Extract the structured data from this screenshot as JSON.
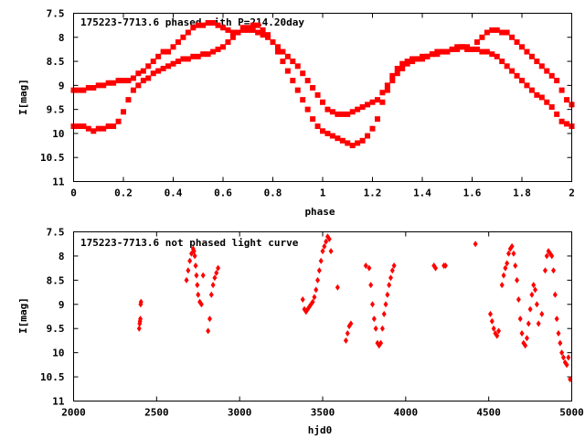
{
  "chart_data": [
    {
      "type": "scatter",
      "title": "175223-7713.6 phased with P=214.20day",
      "xlabel": "phase",
      "ylabel": "I[mag]",
      "xlim": [
        0,
        2
      ],
      "ylim": [
        11,
        7.5
      ],
      "y_inverted": true,
      "x_ticks": [
        "0",
        "0.2",
        "0.4",
        "0.6",
        "0.8",
        "1",
        "1.2",
        "1.4",
        "1.6",
        "1.8",
        "2"
      ],
      "y_ticks": [
        "7.5",
        "8",
        "8.5",
        "9",
        "9.5",
        "10",
        "10.5",
        "11"
      ],
      "grid": false,
      "marker": "square",
      "color": "#ff0000",
      "series": [
        {
          "x": [
            0.0,
            0.02,
            0.04,
            0.06,
            0.08,
            0.1,
            0.12,
            0.14,
            0.16,
            0.18,
            0.2,
            0.22,
            0.24,
            0.26,
            0.28,
            0.3,
            0.32,
            0.34,
            0.36,
            0.38,
            0.4,
            0.42,
            0.44,
            0.46,
            0.48,
            0.5,
            0.52,
            0.54,
            0.56,
            0.58,
            0.6,
            0.62,
            0.64,
            0.66,
            0.68,
            0.7,
            0.72,
            0.74,
            0.76,
            0.78,
            0.8,
            0.82,
            0.84,
            0.86,
            0.88,
            0.9,
            0.92,
            0.94,
            0.96,
            0.98,
            1.0,
            1.02,
            1.04,
            1.06,
            1.08,
            1.1,
            1.12,
            1.14,
            1.16,
            1.18,
            1.2,
            1.22,
            1.24,
            1.26,
            1.28,
            1.3,
            1.32,
            1.34,
            1.36,
            1.38,
            1.4,
            1.42,
            1.44,
            1.46,
            1.48,
            1.5,
            1.52,
            1.54,
            1.56,
            1.58,
            1.6,
            1.62,
            1.64,
            1.66,
            1.68,
            1.7,
            1.72,
            1.74,
            1.76,
            1.78,
            1.8,
            1.82,
            1.84,
            1.86,
            1.88,
            1.9,
            1.92,
            1.94,
            1.96,
            1.98,
            2.0
          ],
          "y": [
            9.1,
            9.1,
            9.1,
            9.05,
            9.05,
            9.0,
            9.0,
            8.95,
            8.95,
            8.9,
            8.9,
            8.9,
            8.85,
            8.75,
            8.7,
            8.6,
            8.5,
            8.4,
            8.3,
            8.3,
            8.2,
            8.1,
            8.0,
            7.9,
            7.8,
            7.75,
            7.75,
            7.7,
            7.7,
            7.75,
            7.8,
            7.85,
            7.9,
            7.9,
            7.85,
            7.85,
            7.85,
            7.9,
            7.95,
            8.0,
            8.1,
            8.2,
            8.3,
            8.4,
            8.5,
            8.6,
            8.75,
            8.9,
            9.05,
            9.2,
            9.35,
            9.5,
            9.55,
            9.6,
            9.6,
            9.6,
            9.55,
            9.5,
            9.45,
            9.4,
            9.35,
            9.3,
            9.15,
            9.0,
            8.8,
            8.65,
            8.55,
            8.5,
            8.45,
            8.45,
            8.4,
            8.4,
            8.35,
            8.35,
            8.3,
            8.3,
            8.25,
            8.25,
            8.2,
            8.25,
            8.25,
            8.1,
            8.0,
            7.9,
            7.85,
            7.85,
            7.9,
            7.9,
            8.0,
            8.1,
            8.2,
            8.3,
            8.4,
            8.5,
            8.6,
            8.7,
            8.8,
            8.9,
            9.1,
            9.3,
            9.4
          ]
        },
        {
          "x": [
            0.0,
            0.02,
            0.04,
            0.06,
            0.08,
            0.1,
            0.12,
            0.14,
            0.16,
            0.18,
            0.2,
            0.22,
            0.24,
            0.26,
            0.28,
            0.3,
            0.32,
            0.34,
            0.36,
            0.38,
            0.4,
            0.42,
            0.44,
            0.46,
            0.48,
            0.5,
            0.52,
            0.54,
            0.56,
            0.58,
            0.6,
            0.62,
            0.64,
            0.66,
            0.68,
            0.7,
            0.72,
            0.74,
            0.76,
            0.78,
            0.8,
            0.82,
            0.84,
            0.86,
            0.88,
            0.9,
            0.92,
            0.94,
            0.96,
            0.98,
            1.0,
            1.02,
            1.04,
            1.06,
            1.08,
            1.1,
            1.12,
            1.14,
            1.16,
            1.18,
            1.2,
            1.22,
            1.24,
            1.26,
            1.28,
            1.3,
            1.32,
            1.34,
            1.36,
            1.38,
            1.4,
            1.42,
            1.44,
            1.46,
            1.48,
            1.5,
            1.52,
            1.54,
            1.56,
            1.58,
            1.6,
            1.62,
            1.64,
            1.66,
            1.68,
            1.7,
            1.72,
            1.74,
            1.76,
            1.78,
            1.8,
            1.82,
            1.84,
            1.86,
            1.88,
            1.9,
            1.92,
            1.94,
            1.96,
            1.98,
            2.0
          ],
          "y": [
            9.85,
            9.85,
            9.85,
            9.9,
            9.95,
            9.9,
            9.9,
            9.85,
            9.85,
            9.75,
            9.55,
            9.3,
            9.1,
            9.0,
            8.9,
            8.85,
            8.75,
            8.7,
            8.65,
            8.6,
            8.55,
            8.5,
            8.45,
            8.45,
            8.4,
            8.4,
            8.35,
            8.35,
            8.3,
            8.25,
            8.2,
            8.1,
            8.0,
            7.9,
            7.8,
            7.8,
            7.75,
            7.75,
            7.85,
            7.95,
            8.1,
            8.3,
            8.5,
            8.7,
            8.9,
            9.1,
            9.3,
            9.5,
            9.7,
            9.85,
            9.95,
            10.0,
            10.05,
            10.1,
            10.15,
            10.2,
            10.25,
            10.2,
            10.15,
            10.05,
            9.9,
            9.7,
            9.35,
            9.1,
            8.9,
            8.75,
            8.65,
            8.55,
            8.5,
            8.45,
            8.45,
            8.4,
            8.35,
            8.3,
            8.3,
            8.3,
            8.25,
            8.2,
            8.2,
            8.2,
            8.25,
            8.25,
            8.3,
            8.3,
            8.35,
            8.4,
            8.5,
            8.6,
            8.7,
            8.8,
            8.9,
            9.0,
            9.1,
            9.2,
            9.25,
            9.35,
            9.45,
            9.6,
            9.75,
            9.8,
            9.85
          ]
        }
      ]
    },
    {
      "type": "scatter",
      "title": "175223-7713.6 not phased light curve",
      "xlabel": "hjd0",
      "ylabel": "I[mag]",
      "xlim": [
        2000,
        5000
      ],
      "ylim": [
        11,
        7.5
      ],
      "y_inverted": true,
      "x_ticks": [
        "2000",
        "2500",
        "3000",
        "3500",
        "4000",
        "4500",
        "5000"
      ],
      "y_ticks": [
        "7.5",
        "8",
        "8.5",
        "9",
        "9.5",
        "10",
        "10.5",
        "11"
      ],
      "grid": false,
      "marker": "diamond",
      "color": "#ff0000",
      "series": [
        {
          "x": [
            2395,
            2398,
            2400,
            2402,
            2404,
            2406,
            2680,
            2690,
            2700,
            2710,
            2720,
            2725,
            2730,
            2735,
            2740,
            2745,
            2750,
            2760,
            2770,
            2780,
            2810,
            2820,
            2830,
            2840,
            2850,
            2860,
            2870,
            3380,
            3390,
            3400,
            3410,
            3420,
            3430,
            3440,
            3450,
            3460,
            3470,
            3480,
            3490,
            3500,
            3510,
            3520,
            3530,
            3540,
            3550,
            3590,
            3640,
            3650,
            3660,
            3670,
            3760,
            3780,
            3790,
            3800,
            3810,
            3820,
            3830,
            3840,
            3850,
            3860,
            3870,
            3880,
            3890,
            3900,
            3910,
            3920,
            3930,
            4170,
            4180,
            4230,
            4240,
            4420,
            4510,
            4520,
            4530,
            4540,
            4550,
            4560,
            4580,
            4590,
            4600,
            4610,
            4620,
            4630,
            4640,
            4650,
            4660,
            4670,
            4680,
            4690,
            4700,
            4710,
            4720,
            4730,
            4740,
            4750,
            4760,
            4770,
            4780,
            4790,
            4800,
            4820,
            4840,
            4850,
            4860,
            4870,
            4880,
            4890,
            4900,
            4910,
            4920,
            4930,
            4940,
            4950,
            4960,
            4970,
            4980,
            4990
          ],
          "y": [
            9.5,
            9.4,
            9.35,
            9.3,
            9.0,
            8.95,
            8.5,
            8.3,
            8.1,
            7.95,
            7.85,
            7.9,
            8.0,
            8.2,
            8.4,
            8.6,
            8.8,
            8.95,
            9.0,
            8.4,
            9.55,
            9.3,
            8.8,
            8.6,
            8.45,
            8.35,
            8.25,
            8.9,
            9.1,
            9.15,
            9.1,
            9.05,
            9.0,
            8.95,
            8.85,
            8.7,
            8.5,
            8.3,
            8.1,
            7.9,
            7.8,
            7.7,
            7.6,
            7.65,
            7.9,
            8.65,
            9.75,
            9.6,
            9.45,
            9.4,
            8.2,
            8.25,
            8.6,
            9.0,
            9.3,
            9.5,
            9.8,
            9.85,
            9.8,
            9.5,
            9.2,
            9.0,
            8.8,
            8.6,
            8.45,
            8.3,
            8.2,
            8.2,
            8.25,
            8.2,
            8.2,
            7.75,
            9.2,
            9.35,
            9.5,
            9.6,
            9.65,
            9.55,
            8.6,
            8.4,
            8.25,
            8.15,
            7.95,
            7.85,
            7.8,
            7.95,
            8.2,
            8.5,
            8.9,
            9.3,
            9.6,
            9.8,
            9.85,
            9.7,
            9.4,
            9.1,
            8.8,
            8.6,
            8.7,
            9.0,
            9.4,
            9.2,
            8.3,
            8.0,
            7.9,
            7.95,
            8.0,
            8.3,
            8.8,
            9.3,
            9.6,
            9.8,
            10.0,
            10.1,
            10.2,
            10.25,
            10.1,
            10.55
          ]
        }
      ]
    }
  ]
}
